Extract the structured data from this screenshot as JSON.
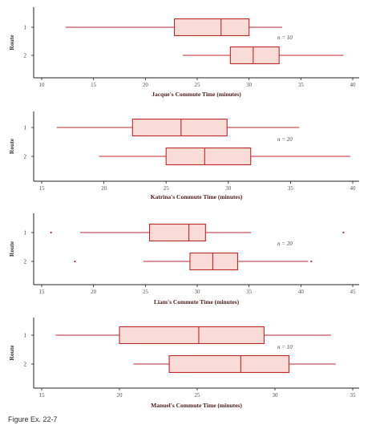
{
  "caption": "Figure Ex. 22-7",
  "style": {
    "line_color": "#c0272d",
    "box_fill": "#f8dcd5",
    "axis_color": "#222222"
  },
  "chart_data": [
    {
      "type": "boxplot",
      "xlabel": "Jacque's Commute Time (minutes)",
      "ylabel": "Route",
      "n_label": "n = 10",
      "xlim": [
        10,
        40
      ],
      "xticks": [
        10,
        15,
        20,
        25,
        30,
        35,
        40
      ],
      "series": [
        {
          "name": "1",
          "min": 12.3,
          "q1": 22.8,
          "median": 27.3,
          "q3": 30.0,
          "max": 33.2,
          "outliers": []
        },
        {
          "name": "2",
          "min": 23.6,
          "q1": 28.2,
          "median": 30.4,
          "q3": 32.9,
          "max": 39.1,
          "outliers": []
        }
      ]
    },
    {
      "type": "boxplot",
      "xlabel": "Katrina's Commute Time (minutes)",
      "ylabel": "Route",
      "n_label": "n = 20",
      "xlim": [
        15,
        40
      ],
      "xticks": [
        15,
        20,
        25,
        30,
        35,
        40
      ],
      "series": [
        {
          "name": "1",
          "min": 16.2,
          "q1": 22.3,
          "median": 26.2,
          "q3": 29.9,
          "max": 35.7,
          "outliers": []
        },
        {
          "name": "2",
          "min": 19.6,
          "q1": 25.0,
          "median": 28.1,
          "q3": 31.8,
          "max": 39.8,
          "outliers": []
        }
      ]
    },
    {
      "type": "boxplot",
      "xlabel": "Liam's Commute Time (minutes)",
      "ylabel": "Route",
      "n_label": "n = 20",
      "xlim": [
        15,
        45
      ],
      "xticks": [
        15,
        20,
        25,
        30,
        35,
        40,
        45
      ],
      "series": [
        {
          "name": "1",
          "min": 18.7,
          "q1": 25.4,
          "median": 29.2,
          "q3": 30.8,
          "max": 35.2,
          "outliers": [
            15.9,
            44.1
          ]
        },
        {
          "name": "2",
          "min": 24.8,
          "q1": 29.3,
          "median": 31.5,
          "q3": 33.9,
          "max": 40.7,
          "outliers": [
            18.2,
            41.0
          ]
        }
      ]
    },
    {
      "type": "boxplot",
      "xlabel": "Manuel's Commute Time (minutes)",
      "ylabel": "Route",
      "n_label": "n = 10",
      "xlim": [
        15,
        35
      ],
      "xticks": [
        15,
        20,
        25,
        30,
        35
      ],
      "series": [
        {
          "name": "1",
          "min": 15.9,
          "q1": 20.0,
          "median": 25.1,
          "q3": 29.3,
          "max": 33.6,
          "outliers": []
        },
        {
          "name": "2",
          "min": 20.9,
          "q1": 23.2,
          "median": 27.8,
          "q3": 30.9,
          "max": 33.9,
          "outliers": []
        }
      ]
    }
  ]
}
